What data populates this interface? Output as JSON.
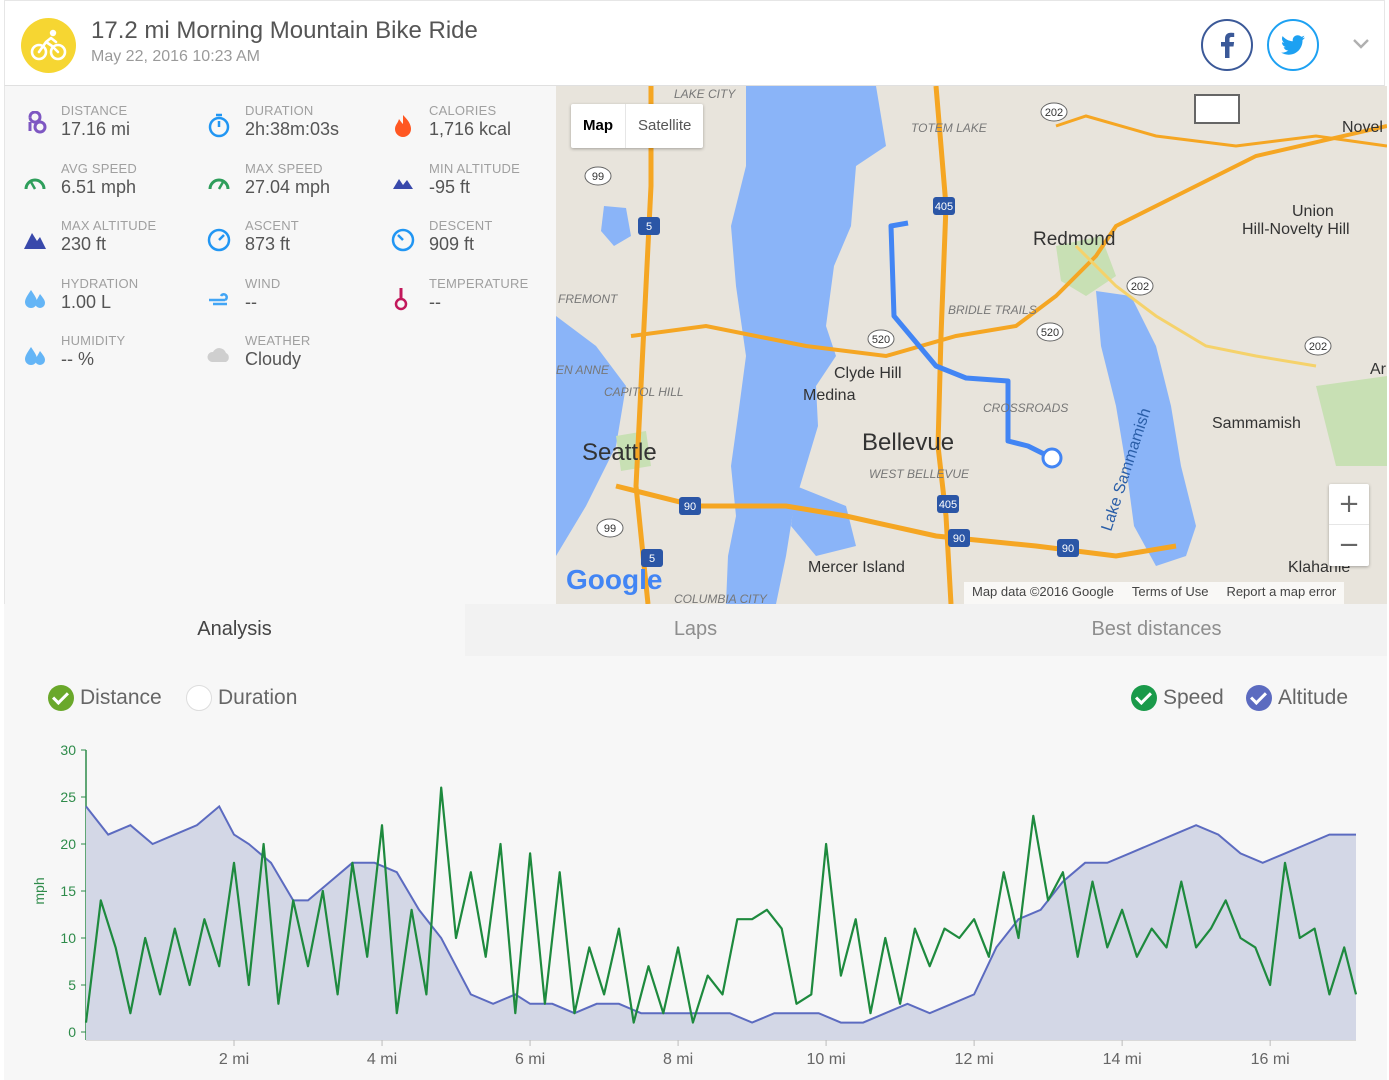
{
  "header": {
    "title": "17.2 mi Morning Mountain Bike Ride",
    "date": "May 22, 2016 10:23 AM"
  },
  "stats": [
    {
      "label": "DISTANCE",
      "value": "17.16 mi",
      "icon": "route-pin-icon",
      "color": "#7e57c2"
    },
    {
      "label": "DURATION",
      "value": "2h:38m:03s",
      "icon": "stopwatch-icon",
      "color": "#2196f3"
    },
    {
      "label": "CALORIES",
      "value": "1,716 kcal",
      "icon": "flame-icon",
      "color": "#ff5722"
    },
    {
      "label": "AVG SPEED",
      "value": "6.51 mph",
      "icon": "avg-speed-gauge-icon",
      "color": "#2e9e5b"
    },
    {
      "label": "MAX SPEED",
      "value": "27.04 mph",
      "icon": "max-speed-gauge-icon",
      "color": "#2e9e5b"
    },
    {
      "label": "MIN ALTITUDE",
      "value": "-95 ft",
      "icon": "min-altitude-mountain-icon",
      "color": "#3949ab"
    },
    {
      "label": "MAX ALTITUDE",
      "value": "230 ft",
      "icon": "max-altitude-mountain-icon",
      "color": "#3949ab"
    },
    {
      "label": "ASCENT",
      "value": "873 ft",
      "icon": "ascent-compass-icon",
      "color": "#2196f3"
    },
    {
      "label": "DESCENT",
      "value": "909 ft",
      "icon": "descent-compass-icon",
      "color": "#2196f3"
    },
    {
      "label": "HYDRATION",
      "value": "1.00 L",
      "icon": "water-drops-icon",
      "color": "#64b5f6"
    },
    {
      "label": "WIND",
      "value": "--",
      "icon": "wind-icon",
      "color": "#42a5f5"
    },
    {
      "label": "TEMPERATURE",
      "value": "--",
      "icon": "thermometer-icon",
      "color": "#c2185b"
    },
    {
      "label": "HUMIDITY",
      "value": "-- %",
      "icon": "humidity-drops-icon",
      "color": "#64b5f6"
    },
    {
      "label": "WEATHER",
      "value": "Cloudy",
      "icon": "cloud-icon",
      "color": "#cfcfcf"
    }
  ],
  "map": {
    "type_map": "Map",
    "type_satellite": "Satellite",
    "zoom_in": "+",
    "zoom_out": "−",
    "logo": "Google",
    "attribution": [
      "Map data ©2016 Google",
      "Terms of Use",
      "Report a map error"
    ],
    "labels": [
      {
        "t": "LAKE CITY",
        "k": "district"
      },
      {
        "t": "TOTEM LAKE",
        "k": "district"
      },
      {
        "t": "Novel",
        "k": "place"
      },
      {
        "t": "Union",
        "k": "place"
      },
      {
        "t": "Hill-Novelty Hill",
        "k": "place"
      },
      {
        "t": "Redmond",
        "k": "city"
      },
      {
        "t": "FREMONT",
        "k": "district"
      },
      {
        "t": "BRIDLE TRAILS",
        "k": "district"
      },
      {
        "t": "EN ANNE",
        "k": "district"
      },
      {
        "t": "CAPITOL HILL",
        "k": "district"
      },
      {
        "t": "Clyde Hill",
        "k": "place"
      },
      {
        "t": "Medina",
        "k": "place"
      },
      {
        "t": "CROSSROADS",
        "k": "district"
      },
      {
        "t": "Ar",
        "k": "place"
      },
      {
        "t": "Sammamish",
        "k": "place"
      },
      {
        "t": "Lake Sammamish",
        "k": "water"
      },
      {
        "t": "Seattle",
        "k": "bigcity"
      },
      {
        "t": "Bellevue",
        "k": "bigcity"
      },
      {
        "t": "WEST BELLEVUE",
        "k": "district"
      },
      {
        "t": "Mercer Island",
        "k": "place"
      },
      {
        "t": "Klahanie",
        "k": "place"
      },
      {
        "t": "COLUMBIA CITY",
        "k": "district"
      }
    ],
    "shields": [
      "202",
      "99",
      "5",
      "405",
      "202",
      "520",
      "520",
      "202",
      "90",
      "405",
      "90",
      "99",
      "5",
      "90"
    ]
  },
  "tabs": [
    "Analysis",
    "Laps",
    "Best distances"
  ],
  "toggles": {
    "distance": {
      "label": "Distance",
      "on": true,
      "color": "#6aa82a"
    },
    "duration": {
      "label": "Duration",
      "on": false,
      "color": "#cccccc"
    },
    "speed": {
      "label": "Speed",
      "on": true,
      "color": "#1a9a4a"
    },
    "altitude": {
      "label": "Altitude",
      "on": true,
      "color": "#5c6bc0"
    }
  },
  "chart_data": {
    "type": "line",
    "ylabel": "mph",
    "ylim": [
      0,
      30
    ],
    "yticks": [
      0,
      5,
      10,
      15,
      20,
      25,
      30
    ],
    "xlim": [
      0,
      17.16
    ],
    "xticks": [
      2,
      4,
      6,
      8,
      10,
      12,
      14,
      16
    ],
    "xtick_labels": [
      "2 mi",
      "4 mi",
      "6 mi",
      "8 mi",
      "10 mi",
      "12 mi",
      "14 mi",
      "16 mi"
    ],
    "series": [
      {
        "name": "Altitude",
        "kind": "area",
        "color": "#5c6bc0",
        "fill": "#d3d7e6",
        "x": [
          0,
          0.3,
          0.6,
          0.9,
          1.2,
          1.5,
          1.8,
          2.0,
          2.2,
          2.5,
          2.8,
          3.0,
          3.3,
          3.6,
          3.9,
          4.2,
          4.5,
          4.8,
          5.0,
          5.2,
          5.5,
          5.8,
          6.0,
          6.3,
          6.6,
          6.9,
          7.2,
          7.5,
          7.8,
          8.1,
          8.4,
          8.7,
          9.0,
          9.3,
          9.6,
          9.9,
          10.2,
          10.5,
          10.8,
          11.1,
          11.4,
          11.7,
          12.0,
          12.3,
          12.6,
          12.9,
          13.2,
          13.5,
          13.8,
          14.1,
          14.4,
          14.7,
          15.0,
          15.3,
          15.6,
          15.9,
          16.2,
          16.5,
          16.8,
          17.16
        ],
        "y": [
          24,
          21,
          22,
          20,
          21,
          22,
          24,
          21,
          20,
          18,
          14,
          14,
          16,
          18,
          18,
          17,
          13,
          10,
          7,
          4,
          3,
          4,
          3,
          3,
          2,
          3,
          3,
          2,
          2,
          2,
          2,
          2,
          1,
          2,
          2,
          2,
          1,
          1,
          2,
          3,
          2,
          3,
          4,
          9,
          12,
          13,
          16,
          18,
          18,
          19,
          20,
          21,
          22,
          21,
          19,
          18,
          19,
          20,
          21,
          21
        ]
      },
      {
        "name": "Speed",
        "kind": "line",
        "color": "#1e8a3e",
        "x": [
          0,
          0.2,
          0.4,
          0.6,
          0.8,
          1.0,
          1.2,
          1.4,
          1.6,
          1.8,
          2.0,
          2.2,
          2.4,
          2.6,
          2.8,
          3.0,
          3.2,
          3.4,
          3.6,
          3.8,
          4.0,
          4.2,
          4.4,
          4.6,
          4.8,
          5.0,
          5.2,
          5.4,
          5.6,
          5.8,
          6.0,
          6.2,
          6.4,
          6.6,
          6.8,
          7.0,
          7.2,
          7.4,
          7.6,
          7.8,
          8.0,
          8.2,
          8.4,
          8.6,
          8.8,
          9.0,
          9.2,
          9.4,
          9.6,
          9.8,
          10.0,
          10.2,
          10.4,
          10.6,
          10.8,
          11.0,
          11.2,
          11.4,
          11.6,
          11.8,
          12.0,
          12.2,
          12.4,
          12.6,
          12.8,
          13.0,
          13.2,
          13.4,
          13.6,
          13.8,
          14.0,
          14.2,
          14.4,
          14.6,
          14.8,
          15.0,
          15.2,
          15.4,
          15.6,
          15.8,
          16.0,
          16.2,
          16.4,
          16.6,
          16.8,
          17.0,
          17.16
        ],
        "y": [
          1,
          14,
          9,
          2,
          10,
          4,
          11,
          5,
          12,
          7,
          18,
          5,
          20,
          3,
          14,
          7,
          15,
          4,
          18,
          8,
          22,
          2,
          13,
          4,
          26,
          10,
          17,
          8,
          20,
          2,
          19,
          3,
          17,
          2,
          9,
          4,
          11,
          1,
          7,
          2,
          9,
          1,
          6,
          4,
          12,
          12,
          13,
          11,
          3,
          4,
          20,
          6,
          12,
          2,
          10,
          3,
          11,
          7,
          11,
          10,
          12,
          8,
          17,
          10,
          23,
          14,
          17,
          8,
          16,
          9,
          13,
          8,
          11,
          9,
          16,
          9,
          11,
          14,
          10,
          9,
          5,
          18,
          10,
          11,
          4,
          9,
          4
        ]
      }
    ]
  }
}
